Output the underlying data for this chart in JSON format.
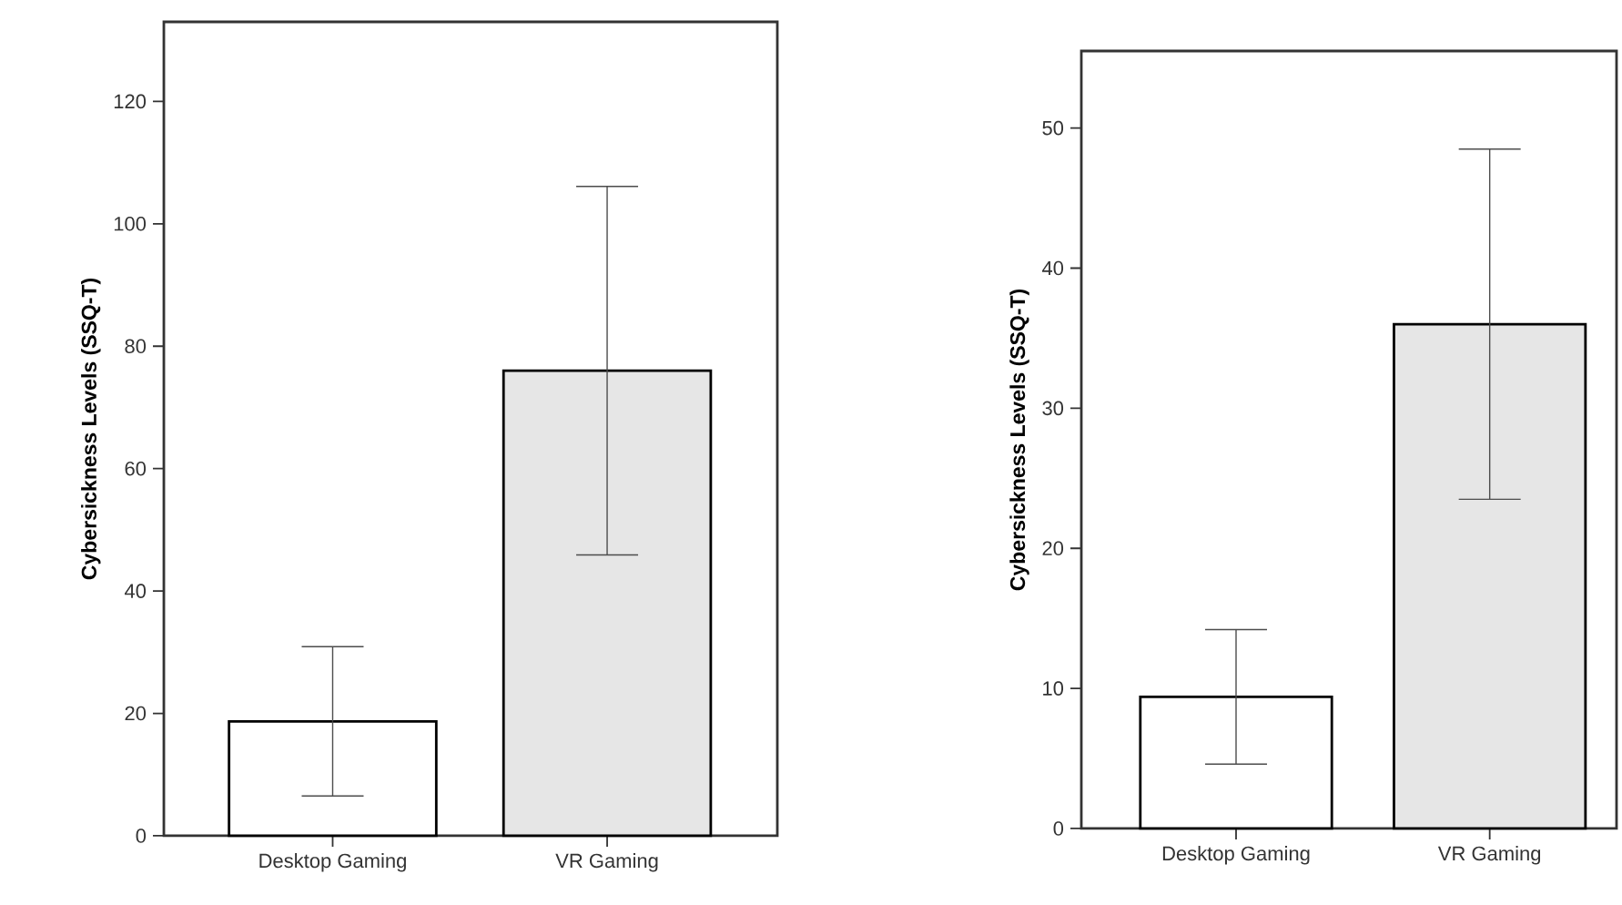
{
  "chart_data": [
    {
      "type": "bar",
      "ylabel": "Cybersickness Levels (SSQ-T)",
      "categories": [
        "Desktop Gaming",
        "VR Gaming"
      ],
      "values": [
        18.7,
        76.0
      ],
      "errors": [
        12.2,
        30.1
      ],
      "colors": [
        "#ffffff",
        "#e6e6e6"
      ],
      "ylim": [
        0,
        133
      ],
      "yticks": [
        0,
        20,
        40,
        60,
        80,
        100,
        120
      ]
    },
    {
      "type": "bar",
      "ylabel": "Cybersickness Levels (SSQ-T)",
      "categories": [
        "Desktop Gaming",
        "VR Gaming"
      ],
      "values": [
        9.4,
        36.0
      ],
      "errors": [
        4.8,
        12.5
      ],
      "colors": [
        "#ffffff",
        "#e6e6e6"
      ],
      "ylim": [
        0,
        55.5
      ],
      "yticks": [
        0,
        10,
        20,
        30,
        40,
        50
      ]
    }
  ]
}
